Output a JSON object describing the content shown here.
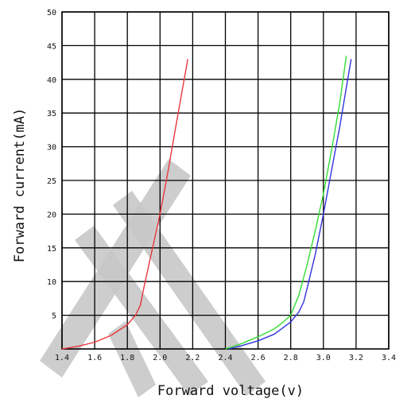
{
  "chart_data": {
    "type": "line",
    "title": "",
    "xlabel": "Forward voltage(v)",
    "ylabel": "Forward current(mA)",
    "xlim": [
      1.4,
      3.4
    ],
    "ylim": [
      0,
      50
    ],
    "x_ticks": [
      "1.4",
      "1.6",
      "1.8",
      "2.0",
      "2.2",
      "2.4",
      "2.6",
      "2.8",
      "3.0",
      "3.2",
      "3.4"
    ],
    "y_ticks": [
      "5",
      "10",
      "15",
      "20",
      "25",
      "30",
      "35",
      "40",
      "45",
      "50"
    ],
    "grid": true,
    "series": [
      {
        "color": "#e8383d",
        "x": [
          1.4,
          1.5,
          1.6,
          1.7,
          1.8,
          1.85,
          1.88,
          1.9,
          1.95,
          2.0,
          2.05,
          2.1,
          2.17
        ],
        "y": [
          0,
          0.4,
          1.0,
          2.0,
          3.6,
          5.0,
          6.5,
          9.0,
          14.5,
          20.0,
          26.5,
          33.5,
          43.0
        ]
      },
      {
        "color": "#33dd33",
        "x": [
          2.4,
          2.5,
          2.6,
          2.7,
          2.75,
          2.8,
          2.85,
          2.9,
          2.95,
          3.0,
          3.05,
          3.1,
          3.14
        ],
        "y": [
          0,
          0.8,
          1.8,
          3.0,
          3.9,
          5.0,
          8.0,
          12.5,
          17.5,
          23.0,
          29.5,
          36.5,
          43.5
        ]
      },
      {
        "color": "#3333dd",
        "x": [
          2.42,
          2.5,
          2.6,
          2.7,
          2.8,
          2.85,
          2.88,
          2.9,
          2.95,
          3.0,
          3.05,
          3.1,
          3.17
        ],
        "y": [
          0,
          0.5,
          1.2,
          2.2,
          4.0,
          5.5,
          7.0,
          9.0,
          14.0,
          20.0,
          26.5,
          33.0,
          43.0
        ]
      }
    ]
  }
}
